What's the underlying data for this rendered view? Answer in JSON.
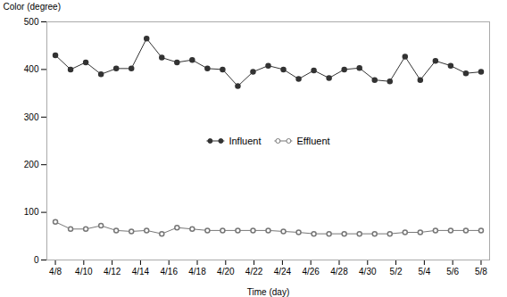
{
  "chart_data": {
    "type": "line",
    "x": [
      0,
      0.5357142857142857,
      1.0714285714285714,
      1.6071428571428572,
      2.142857142857143,
      2.6785714285714284,
      3.2142857142857144,
      3.75,
      4.285714285714286,
      4.821428571428571,
      5.357142857142857,
      5.892857142857143,
      6.428571428571429,
      6.964285714285714,
      7.5,
      8.035714285714286,
      8.571428571428571,
      9.107142857142858,
      9.642857142857142,
      10.178571428571429,
      10.714285714285714,
      11.25,
      11.785714285714286,
      12.321428571428571,
      12.857142857142858,
      13.392857142857142,
      13.928571428571429,
      14.464285714285714,
      15
    ],
    "series": [
      {
        "name": "Influent",
        "color": "#333333",
        "marker": "circle",
        "values": [
          430,
          400,
          415,
          390,
          402,
          402,
          465,
          425,
          415,
          420,
          402,
          400,
          365,
          395,
          408,
          400,
          380,
          398,
          382,
          400,
          403,
          378,
          375,
          427,
          378,
          418,
          408,
          392,
          395
        ]
      },
      {
        "name": "Effluent",
        "color": "#777777",
        "marker": "hollow",
        "values": [
          80,
          65,
          65,
          72,
          62,
          60,
          62,
          55,
          68,
          65,
          62,
          62,
          62,
          62,
          62,
          60,
          58,
          55,
          55,
          55,
          55,
          55,
          55,
          58,
          58,
          62,
          62,
          62,
          62
        ]
      }
    ],
    "xlabel": "Time (day)",
    "ylabel": "Color (degree)",
    "xlim": [
      -0.3,
      15.3
    ],
    "xticks": [
      {
        "value": 0,
        "label": "4/8"
      },
      {
        "value": 1,
        "label": "4/10"
      },
      {
        "value": 2,
        "label": "4/12"
      },
      {
        "value": 3,
        "label": "4/14"
      },
      {
        "value": 4,
        "label": "4/16"
      },
      {
        "value": 5,
        "label": "4/18"
      },
      {
        "value": 6,
        "label": "4/20"
      },
      {
        "value": 7,
        "label": "4/22"
      },
      {
        "value": 8,
        "label": "4/24"
      },
      {
        "value": 9,
        "label": "4/26"
      },
      {
        "value": 10,
        "label": "4/28"
      },
      {
        "value": 11,
        "label": "4/30"
      },
      {
        "value": 12,
        "label": "5/2"
      },
      {
        "value": 13,
        "label": "5/4"
      },
      {
        "value": 14,
        "label": "5/6"
      },
      {
        "value": 15,
        "label": "5/8"
      }
    ],
    "ylim": [
      0,
      500
    ],
    "yticks": [
      0,
      100,
      200,
      300,
      400,
      500
    ],
    "grid": false,
    "legend": "center"
  }
}
